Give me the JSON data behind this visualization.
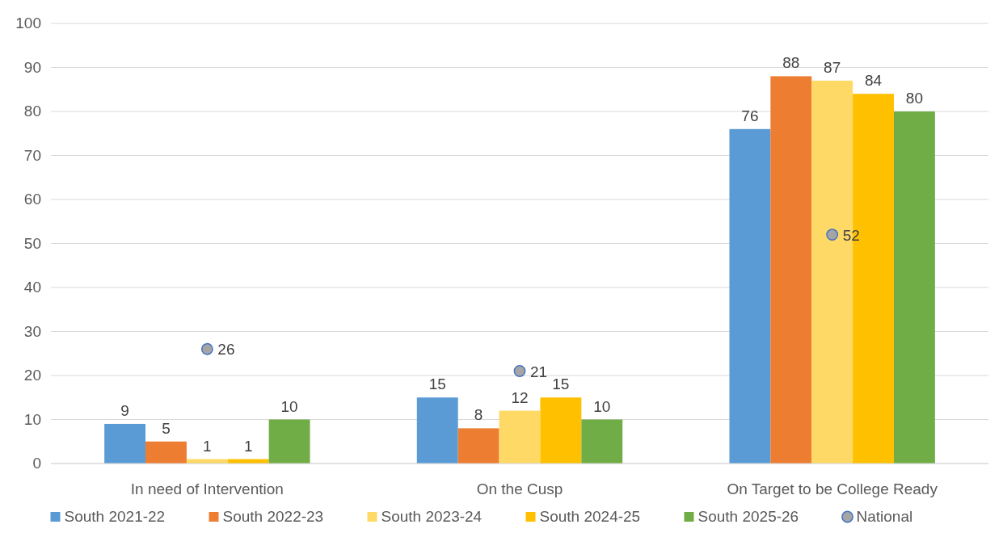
{
  "chart_data": {
    "type": "bar",
    "categories": [
      "In need of Intervention",
      "On the Cusp",
      "On Target to be College Ready"
    ],
    "series": [
      {
        "name": "South 2021-22",
        "color": "#5b9bd5",
        "values": [
          9,
          15,
          76
        ]
      },
      {
        "name": "South 2022-23",
        "color": "#ed7d31",
        "values": [
          5,
          8,
          88
        ]
      },
      {
        "name": "South 2023-24",
        "color": "#ffd966",
        "values": [
          1,
          12,
          87
        ]
      },
      {
        "name": "South 2024-25",
        "color": "#ffc000",
        "values": [
          1,
          15,
          84
        ]
      },
      {
        "name": "South 2025-26",
        "color": "#70ad47",
        "values": [
          10,
          10,
          80
        ]
      },
      {
        "name": "National",
        "type": "scatter",
        "color": "#a5a5a5",
        "x": [
          "In need of Intervention",
          "On the Cusp",
          "On Target to be College Ready"
        ],
        "values": [
          26,
          21,
          52
        ],
        "marker": "circle"
      }
    ],
    "ylim": [
      0,
      100
    ],
    "yticks": [
      0,
      10,
      20,
      30,
      40,
      50,
      60,
      70,
      80,
      90,
      100
    ],
    "grid": "y",
    "legend": "bottom",
    "data_labels": true
  }
}
